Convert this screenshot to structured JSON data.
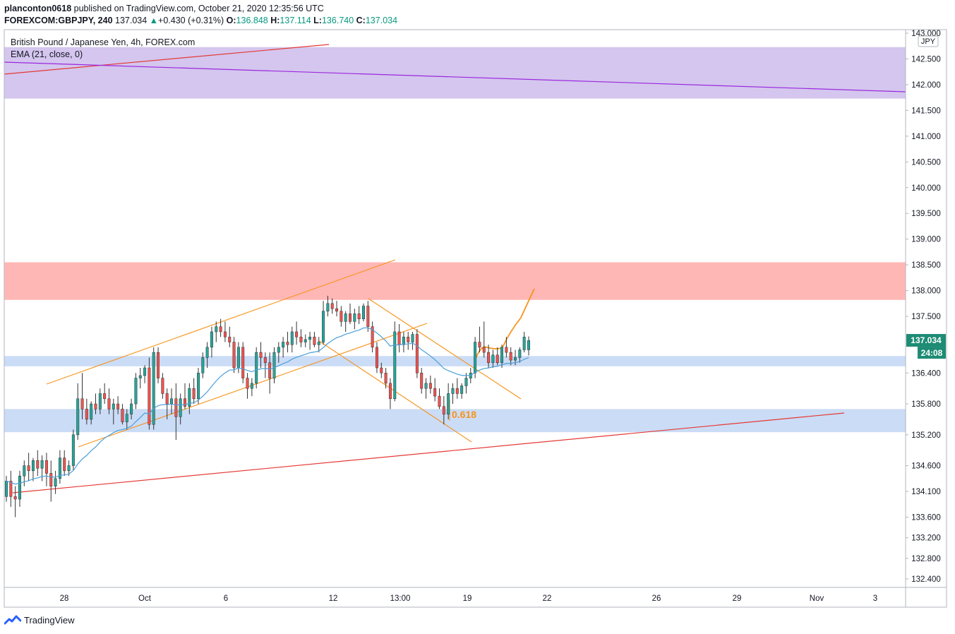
{
  "header": {
    "user": "planconton0618",
    "published": "published on TradingView.com, October 21, 2020 12:35:56 UTC",
    "symbol": "FOREXCOM:GBPJPY, 240",
    "last": "137.034",
    "change": "+0.430 (+0.31%)",
    "o_label": "O:",
    "o_value": "136.848",
    "h_label": "H:",
    "h_value": "137.114",
    "l_label": "L:",
    "l_value": "136.740",
    "c_label": "C:",
    "c_value": "137.034"
  },
  "chart_title": "British Pound / Japanese Yen, 4h, FOREX.com",
  "indicator_label": "EMA (21, close, 0)",
  "footer": {
    "brand": "TradingView"
  },
  "colors": {
    "up": "#26a69a",
    "down": "#ef5350",
    "ema": "#4a9fd8",
    "orange": "#f7931a",
    "red_line": "#e53935",
    "purple_line": "#9c27e0",
    "zone_purple": "#d4c6ee",
    "zone_red": "#ffb7b5",
    "zone_blue": "#cbdcf6",
    "price_tag": "#1e8c74"
  },
  "chart_data": {
    "type": "candlestick",
    "currency": "JPY",
    "ylim": [
      132.1,
      143.0
    ],
    "y_ticks": [
      "143.000",
      "142.500",
      "142.000",
      "141.500",
      "141.000",
      "140.500",
      "140.000",
      "139.500",
      "139.000",
      "138.500",
      "138.000",
      "137.500",
      "136.400",
      "135.800",
      "135.200",
      "134.600",
      "134.100",
      "133.600",
      "133.200",
      "132.800",
      "132.400"
    ],
    "x_ticks": [
      "28",
      "Oct",
      "6",
      "12",
      "13:00",
      "19",
      "22",
      "26",
      "29",
      "Nov",
      "3"
    ],
    "last_price": "137.034",
    "countdown": "24:08",
    "annotations": [
      {
        "text": "0.618",
        "color": "#f7931a"
      }
    ],
    "zones": [
      {
        "name": "purple-zone",
        "from": 141.73,
        "to": 142.73
      },
      {
        "name": "red-zone",
        "from": 137.82,
        "to": 138.55
      },
      {
        "name": "blue-zone-upper",
        "from": 136.53,
        "to": 136.73
      },
      {
        "name": "blue-zone-lower",
        "from": 135.25,
        "to": 135.7
      }
    ],
    "candles": [
      {
        "o": 134.0,
        "h": 134.4,
        "l": 133.9,
        "c": 134.3
      },
      {
        "o": 134.3,
        "h": 134.5,
        "l": 133.8,
        "c": 134.0
      },
      {
        "o": 134.0,
        "h": 134.2,
        "l": 133.6,
        "c": 133.95
      },
      {
        "o": 133.95,
        "h": 134.5,
        "l": 133.8,
        "c": 134.4
      },
      {
        "o": 134.4,
        "h": 134.7,
        "l": 134.2,
        "c": 134.6
      },
      {
        "o": 134.6,
        "h": 134.85,
        "l": 134.3,
        "c": 134.5
      },
      {
        "o": 134.5,
        "h": 134.75,
        "l": 134.3,
        "c": 134.7
      },
      {
        "o": 134.7,
        "h": 134.9,
        "l": 134.4,
        "c": 134.55
      },
      {
        "o": 134.55,
        "h": 134.8,
        "l": 134.3,
        "c": 134.7
      },
      {
        "o": 134.7,
        "h": 134.85,
        "l": 134.2,
        "c": 134.45
      },
      {
        "o": 134.45,
        "h": 134.7,
        "l": 133.9,
        "c": 134.2
      },
      {
        "o": 134.2,
        "h": 134.5,
        "l": 134.05,
        "c": 134.35
      },
      {
        "o": 134.35,
        "h": 134.9,
        "l": 134.25,
        "c": 134.75
      },
      {
        "o": 134.75,
        "h": 134.9,
        "l": 134.4,
        "c": 134.5
      },
      {
        "o": 134.5,
        "h": 134.7,
        "l": 134.4,
        "c": 134.6
      },
      {
        "o": 134.6,
        "h": 135.3,
        "l": 134.5,
        "c": 135.2
      },
      {
        "o": 135.2,
        "h": 136.2,
        "l": 135.1,
        "c": 135.9
      },
      {
        "o": 135.9,
        "h": 136.4,
        "l": 135.5,
        "c": 135.7
      },
      {
        "o": 135.7,
        "h": 135.9,
        "l": 135.4,
        "c": 135.5
      },
      {
        "o": 135.5,
        "h": 135.85,
        "l": 135.4,
        "c": 135.8
      },
      {
        "o": 135.8,
        "h": 136.0,
        "l": 135.6,
        "c": 135.7
      },
      {
        "o": 135.7,
        "h": 136.1,
        "l": 135.6,
        "c": 136.0
      },
      {
        "o": 136.0,
        "h": 136.2,
        "l": 135.8,
        "c": 135.9
      },
      {
        "o": 135.9,
        "h": 136.1,
        "l": 135.6,
        "c": 135.7
      },
      {
        "o": 135.7,
        "h": 135.9,
        "l": 135.4,
        "c": 135.8
      },
      {
        "o": 135.8,
        "h": 135.95,
        "l": 135.6,
        "c": 135.7
      },
      {
        "o": 135.7,
        "h": 135.8,
        "l": 135.4,
        "c": 135.45
      },
      {
        "o": 135.45,
        "h": 135.7,
        "l": 135.3,
        "c": 135.6
      },
      {
        "o": 135.6,
        "h": 135.9,
        "l": 135.5,
        "c": 135.8
      },
      {
        "o": 135.8,
        "h": 136.4,
        "l": 135.7,
        "c": 136.3
      },
      {
        "o": 136.3,
        "h": 136.5,
        "l": 136.1,
        "c": 136.35
      },
      {
        "o": 136.35,
        "h": 136.55,
        "l": 136.2,
        "c": 136.5
      },
      {
        "o": 136.5,
        "h": 136.7,
        "l": 135.3,
        "c": 135.4
      },
      {
        "o": 135.4,
        "h": 136.9,
        "l": 135.3,
        "c": 136.8
      },
      {
        "o": 136.8,
        "h": 136.9,
        "l": 136.2,
        "c": 136.3
      },
      {
        "o": 136.3,
        "h": 136.4,
        "l": 135.9,
        "c": 136.0
      },
      {
        "o": 136.0,
        "h": 136.1,
        "l": 135.5,
        "c": 135.8
      },
      {
        "o": 135.8,
        "h": 136.1,
        "l": 135.6,
        "c": 135.9
      },
      {
        "o": 135.9,
        "h": 136.2,
        "l": 135.1,
        "c": 135.55
      },
      {
        "o": 135.55,
        "h": 136.0,
        "l": 135.4,
        "c": 135.9
      },
      {
        "o": 135.9,
        "h": 136.2,
        "l": 135.7,
        "c": 135.75
      },
      {
        "o": 135.75,
        "h": 136.2,
        "l": 135.6,
        "c": 136.1
      },
      {
        "o": 136.1,
        "h": 136.3,
        "l": 135.8,
        "c": 135.9
      },
      {
        "o": 135.9,
        "h": 136.5,
        "l": 135.8,
        "c": 136.4
      },
      {
        "o": 136.4,
        "h": 136.8,
        "l": 136.3,
        "c": 136.7
      },
      {
        "o": 136.7,
        "h": 137.0,
        "l": 136.5,
        "c": 136.9
      },
      {
        "o": 136.9,
        "h": 137.3,
        "l": 136.7,
        "c": 137.2
      },
      {
        "o": 137.2,
        "h": 137.4,
        "l": 137.0,
        "c": 137.3
      },
      {
        "o": 137.3,
        "h": 137.45,
        "l": 137.1,
        "c": 137.2
      },
      {
        "o": 137.2,
        "h": 137.4,
        "l": 137.0,
        "c": 137.1
      },
      {
        "o": 137.1,
        "h": 137.3,
        "l": 136.9,
        "c": 137.0
      },
      {
        "o": 137.0,
        "h": 137.1,
        "l": 136.4,
        "c": 136.5
      },
      {
        "o": 136.5,
        "h": 137.0,
        "l": 136.4,
        "c": 136.9
      },
      {
        "o": 136.9,
        "h": 137.0,
        "l": 136.2,
        "c": 136.3
      },
      {
        "o": 136.3,
        "h": 136.4,
        "l": 135.9,
        "c": 136.1
      },
      {
        "o": 136.1,
        "h": 136.3,
        "l": 135.95,
        "c": 136.2
      },
      {
        "o": 136.2,
        "h": 136.9,
        "l": 136.1,
        "c": 136.8
      },
      {
        "o": 136.8,
        "h": 137.0,
        "l": 136.5,
        "c": 136.7
      },
      {
        "o": 136.7,
        "h": 136.8,
        "l": 136.3,
        "c": 136.6
      },
      {
        "o": 136.6,
        "h": 136.8,
        "l": 136.0,
        "c": 136.3
      },
      {
        "o": 136.3,
        "h": 136.9,
        "l": 136.2,
        "c": 136.8
      },
      {
        "o": 136.8,
        "h": 137.0,
        "l": 136.6,
        "c": 136.9
      },
      {
        "o": 136.9,
        "h": 137.1,
        "l": 136.7,
        "c": 137.0
      },
      {
        "o": 137.0,
        "h": 137.2,
        "l": 136.8,
        "c": 136.95
      },
      {
        "o": 136.95,
        "h": 137.3,
        "l": 136.8,
        "c": 137.2
      },
      {
        "o": 137.2,
        "h": 137.4,
        "l": 136.95,
        "c": 137.1
      },
      {
        "o": 137.1,
        "h": 137.25,
        "l": 136.9,
        "c": 137.0
      },
      {
        "o": 137.0,
        "h": 137.15,
        "l": 136.9,
        "c": 137.05
      },
      {
        "o": 137.05,
        "h": 137.2,
        "l": 136.85,
        "c": 137.1
      },
      {
        "o": 137.1,
        "h": 137.2,
        "l": 136.9,
        "c": 136.95
      },
      {
        "o": 136.95,
        "h": 137.1,
        "l": 136.8,
        "c": 137.0
      },
      {
        "o": 137.0,
        "h": 137.8,
        "l": 136.95,
        "c": 137.6
      },
      {
        "o": 137.6,
        "h": 137.9,
        "l": 137.5,
        "c": 137.75
      },
      {
        "o": 137.75,
        "h": 137.85,
        "l": 137.55,
        "c": 137.65
      },
      {
        "o": 137.65,
        "h": 137.8,
        "l": 137.5,
        "c": 137.6
      },
      {
        "o": 137.6,
        "h": 137.7,
        "l": 137.3,
        "c": 137.4
      },
      {
        "o": 137.4,
        "h": 137.6,
        "l": 137.2,
        "c": 137.55
      },
      {
        "o": 137.55,
        "h": 137.75,
        "l": 137.35,
        "c": 137.4
      },
      {
        "o": 137.4,
        "h": 137.65,
        "l": 137.25,
        "c": 137.55
      },
      {
        "o": 137.55,
        "h": 137.7,
        "l": 137.35,
        "c": 137.45
      },
      {
        "o": 137.45,
        "h": 137.75,
        "l": 137.4,
        "c": 137.7
      },
      {
        "o": 137.7,
        "h": 137.8,
        "l": 137.2,
        "c": 137.3
      },
      {
        "o": 137.3,
        "h": 137.4,
        "l": 136.8,
        "c": 136.9
      },
      {
        "o": 136.9,
        "h": 137.0,
        "l": 136.4,
        "c": 136.5
      },
      {
        "o": 136.5,
        "h": 136.6,
        "l": 136.3,
        "c": 136.4
      },
      {
        "o": 136.4,
        "h": 136.5,
        "l": 136.1,
        "c": 136.2
      },
      {
        "o": 136.2,
        "h": 136.3,
        "l": 135.7,
        "c": 135.9
      },
      {
        "o": 135.9,
        "h": 137.4,
        "l": 135.85,
        "c": 137.2
      },
      {
        "o": 137.2,
        "h": 137.35,
        "l": 136.8,
        "c": 136.95
      },
      {
        "o": 136.95,
        "h": 137.2,
        "l": 136.8,
        "c": 137.1
      },
      {
        "o": 137.1,
        "h": 137.2,
        "l": 136.85,
        "c": 137.0
      },
      {
        "o": 137.0,
        "h": 137.2,
        "l": 136.85,
        "c": 137.15
      },
      {
        "o": 137.15,
        "h": 137.25,
        "l": 136.3,
        "c": 136.4
      },
      {
        "o": 136.4,
        "h": 136.5,
        "l": 136.0,
        "c": 136.1
      },
      {
        "o": 136.1,
        "h": 136.3,
        "l": 135.9,
        "c": 136.2
      },
      {
        "o": 136.2,
        "h": 136.35,
        "l": 136.0,
        "c": 136.1
      },
      {
        "o": 136.1,
        "h": 136.3,
        "l": 135.85,
        "c": 135.95
      },
      {
        "o": 135.95,
        "h": 136.1,
        "l": 135.7,
        "c": 135.75
      },
      {
        "o": 135.75,
        "h": 135.95,
        "l": 135.4,
        "c": 135.6
      },
      {
        "o": 135.6,
        "h": 136.2,
        "l": 135.5,
        "c": 136.0
      },
      {
        "o": 136.0,
        "h": 136.2,
        "l": 135.8,
        "c": 136.1
      },
      {
        "o": 136.1,
        "h": 136.3,
        "l": 135.9,
        "c": 136.0
      },
      {
        "o": 136.0,
        "h": 136.2,
        "l": 135.9,
        "c": 136.15
      },
      {
        "o": 136.15,
        "h": 136.4,
        "l": 136.0,
        "c": 136.3
      },
      {
        "o": 136.3,
        "h": 136.5,
        "l": 136.2,
        "c": 136.4
      },
      {
        "o": 136.4,
        "h": 137.1,
        "l": 136.3,
        "c": 137.0
      },
      {
        "o": 137.0,
        "h": 137.3,
        "l": 136.8,
        "c": 136.9
      },
      {
        "o": 136.9,
        "h": 137.4,
        "l": 136.7,
        "c": 136.8
      },
      {
        "o": 136.8,
        "h": 136.95,
        "l": 136.5,
        "c": 136.6
      },
      {
        "o": 136.6,
        "h": 136.85,
        "l": 136.5,
        "c": 136.75
      },
      {
        "o": 136.75,
        "h": 136.9,
        "l": 136.55,
        "c": 136.6
      },
      {
        "o": 136.6,
        "h": 136.95,
        "l": 136.5,
        "c": 136.9
      },
      {
        "o": 136.9,
        "h": 137.1,
        "l": 136.7,
        "c": 136.8
      },
      {
        "o": 136.8,
        "h": 136.9,
        "l": 136.55,
        "c": 136.65
      },
      {
        "o": 136.65,
        "h": 136.85,
        "l": 136.55,
        "c": 136.7
      },
      {
        "o": 136.7,
        "h": 136.9,
        "l": 136.6,
        "c": 136.85
      },
      {
        "o": 136.85,
        "h": 137.2,
        "l": 136.8,
        "c": 137.1
      },
      {
        "o": 136.85,
        "h": 137.11,
        "l": 136.74,
        "c": 137.03
      }
    ]
  }
}
